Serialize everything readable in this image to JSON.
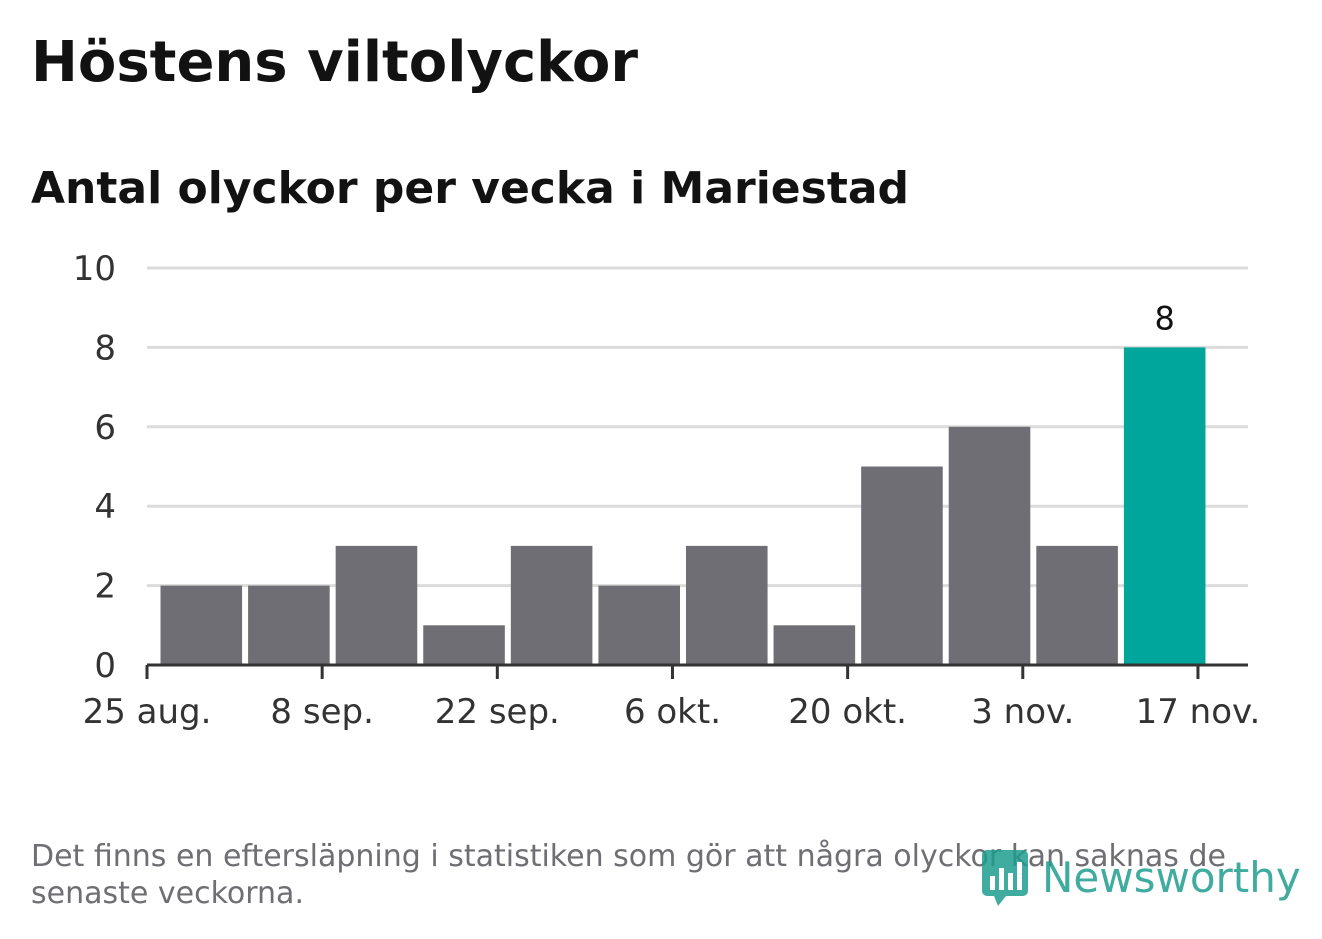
{
  "title": "Höstens viltolyckor",
  "subtitle": "Antal olyckor per vecka i Mariestad",
  "footnote": "Det finns en eftersläpning i statistiken som gör att några olyckor kan saknas de senaste veckorna.",
  "logo_text": "Newsworthy",
  "colors": {
    "bar": "#6f6e74",
    "highlight": "#00a59b",
    "grid": "#dcdcdc",
    "axis": "#333333",
    "text": "#121212",
    "muted": "#6e6e73",
    "logo": "#1f9d8f"
  },
  "chart_data": {
    "type": "bar",
    "title": "Höstens viltolyckor",
    "subtitle": "Antal olyckor per vecka i Mariestad",
    "xlabel": "",
    "ylabel": "",
    "x_axis_type": "date",
    "weeks": [
      "2019-08-26",
      "2019-09-02",
      "2019-09-09",
      "2019-09-16",
      "2019-09-23",
      "2019-09-30",
      "2019-10-07",
      "2019-10-14",
      "2019-10-21",
      "2019-10-28",
      "2019-11-04",
      "2019-11-11"
    ],
    "values": [
      2,
      2,
      3,
      1,
      3,
      2,
      3,
      1,
      5,
      6,
      3,
      8
    ],
    "highlight_index": 11,
    "data_labels": [
      {
        "index": 11,
        "text": "8"
      }
    ],
    "x_ticks": [
      {
        "date": "2019-08-25",
        "label": "25 aug."
      },
      {
        "date": "2019-09-08",
        "label": "8 sep."
      },
      {
        "date": "2019-09-22",
        "label": "22 sep."
      },
      {
        "date": "2019-10-06",
        "label": "6 okt."
      },
      {
        "date": "2019-10-20",
        "label": "20 okt."
      },
      {
        "date": "2019-11-03",
        "label": "3 nov."
      },
      {
        "date": "2019-11-17",
        "label": "17 nov."
      }
    ],
    "y_ticks": [
      "0",
      "2",
      "4",
      "6",
      "8",
      "10"
    ],
    "ylim": [
      0,
      10
    ],
    "xlim": [
      "2019-08-25",
      "2019-11-21"
    ],
    "grid": true,
    "legend": "none"
  }
}
